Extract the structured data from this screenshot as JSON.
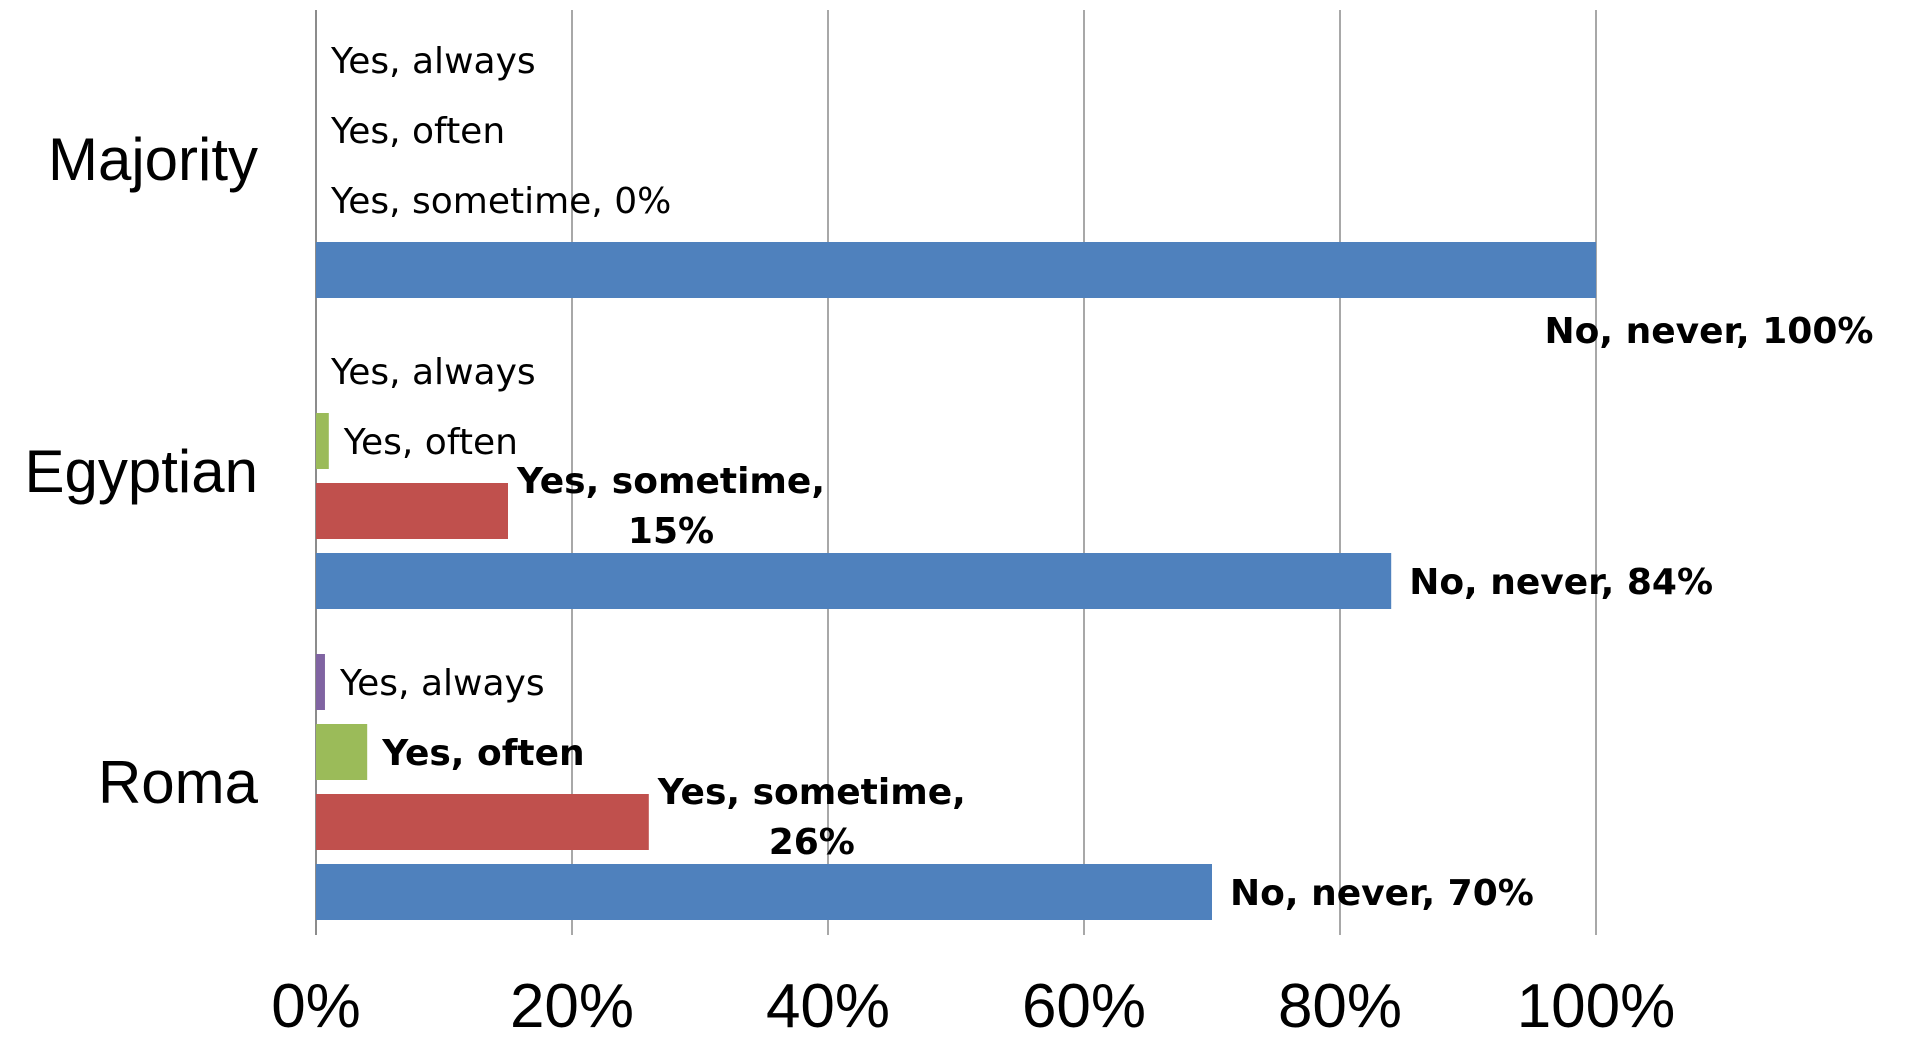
{
  "chart_data": {
    "type": "bar",
    "orientation": "horizontal",
    "categories": [
      "Majority",
      "Egyptian",
      "Roma"
    ],
    "series": [
      {
        "name": "No, never",
        "color": "#4f81bd",
        "values": [
          100,
          84,
          70
        ]
      },
      {
        "name": "Yes, sometime",
        "color": "#c0504d",
        "values": [
          0,
          15,
          26
        ]
      },
      {
        "name": "Yes, often",
        "color": "#9bbb59",
        "values": [
          0,
          1,
          4
        ]
      },
      {
        "name": "Yes, always",
        "color": "#8064a2",
        "values": [
          0,
          0,
          0.7
        ]
      }
    ],
    "data_labels": [
      [
        "No, never, 100%",
        "Yes, sometime, 0%",
        "Yes, often",
        "Yes, always"
      ],
      [
        "No, never, 84%",
        "Yes, sometime, 15%",
        "Yes, often",
        "Yes, always"
      ],
      [
        "No, never, 70%",
        "Yes, sometime, 26%",
        "Yes, often",
        "Yes, always"
      ]
    ],
    "xlim": [
      0,
      100
    ],
    "x_ticks": [
      "0%",
      "20%",
      "40%",
      "60%",
      "80%",
      "100%"
    ],
    "x_tick_values": [
      0,
      20,
      40,
      60,
      80,
      100
    ],
    "grid": "vertical",
    "legend": "none",
    "title": "",
    "xlabel": "",
    "ylabel": ""
  }
}
